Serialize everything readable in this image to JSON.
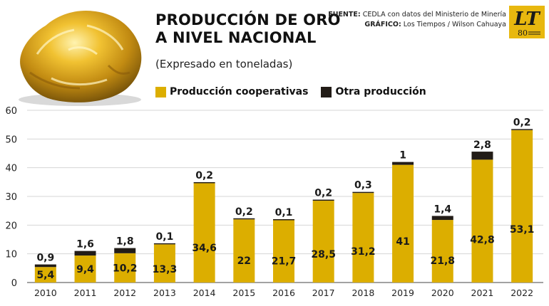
{
  "header": {
    "title_line1": "PRODUCCIÓN DE ORO",
    "title_line2": "A NIVEL NACIONAL",
    "subtitle": "(Expresado en toneladas)",
    "source_label": "FUENTE:",
    "source_text": "CEDLA con datos del Ministerio de Minería",
    "graphic_label": "GRÁFICO:",
    "graphic_text": "Los Tiempos / Wilson Cahuaya",
    "logo_letters": "LT",
    "logo_number": "80"
  },
  "colors": {
    "cooperative": "#dcae00",
    "other": "#221c17",
    "grid": "#d6d6d6",
    "logo": "#e8b80f"
  },
  "chart_data": {
    "type": "bar",
    "stacked": true,
    "categories": [
      "2010",
      "2011",
      "2012",
      "2013",
      "2014",
      "2015",
      "2016",
      "2017",
      "2018",
      "2019",
      "2020",
      "2021",
      "2022"
    ],
    "series": [
      {
        "name": "Producción cooperativas",
        "values": [
          5.4,
          9.4,
          10.2,
          13.3,
          34.6,
          22,
          21.7,
          28.5,
          31.2,
          41,
          21.8,
          42.8,
          53.1
        ],
        "labels": [
          "5,4",
          "9,4",
          "10,2",
          "13,3",
          "34,6",
          "22",
          "21,7",
          "28,5",
          "31,2",
          "41",
          "21,8",
          "42,8",
          "53,1"
        ]
      },
      {
        "name": "Otra producción",
        "values": [
          0.9,
          1.6,
          1.8,
          0.1,
          0.2,
          0.2,
          0.1,
          0.2,
          0.3,
          1,
          1.4,
          2.8,
          0.2
        ],
        "labels": [
          "0,9",
          "1,6",
          "1,8",
          "0,1",
          "0,2",
          "0,2",
          "0,1",
          "0,2",
          "0,3",
          "1",
          "1,4",
          "2,8",
          "0,2"
        ]
      }
    ],
    "ylim": [
      0,
      60
    ],
    "yticks": [
      "0",
      "10",
      "20",
      "30",
      "40",
      "50",
      "60"
    ],
    "grid": true,
    "legend": "top"
  }
}
